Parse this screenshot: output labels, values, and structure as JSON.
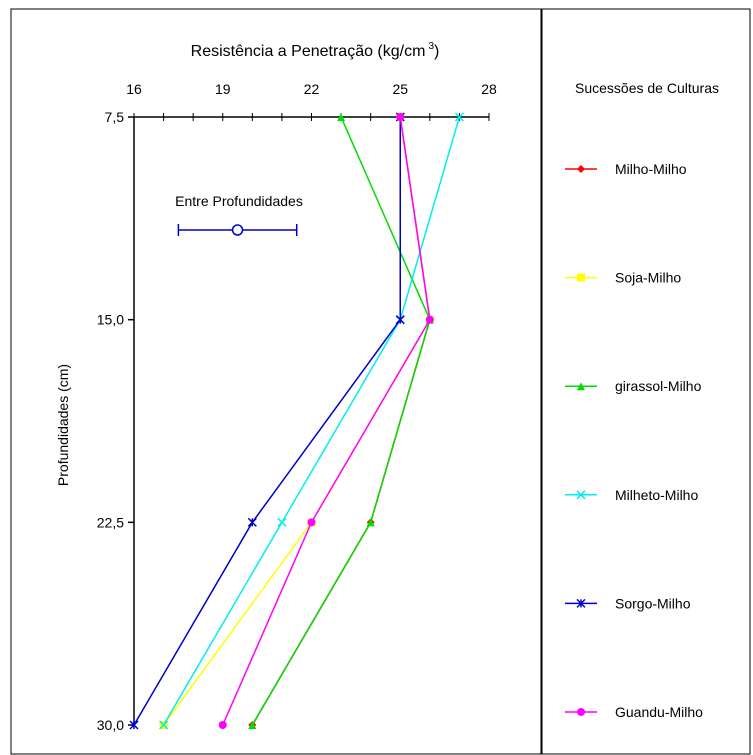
{
  "chart_data": {
    "type": "line",
    "title": "Resistência a Penetração (kg/cm",
    "title_superscript": "3",
    "title_close": ")",
    "ylabel": "Profundidades (cm)",
    "x_ticks": [
      "16",
      "19",
      "22",
      "25",
      "28"
    ],
    "x_range": [
      16,
      28
    ],
    "y_ticks": [
      "7,5",
      "15,0",
      "22,5",
      "30,0"
    ],
    "y_values": [
      7.5,
      15.0,
      22.5,
      30.0
    ],
    "y_range": [
      7.5,
      30.0
    ],
    "y_inverted": true,
    "x_axis_position": "top",
    "legend_title": "Sucessões de Culturas",
    "legend_position": "right panel",
    "error_bar": {
      "label": "Entre Profundidades",
      "center": 19.5,
      "low": 17.5,
      "high": 21.5,
      "color": "#0000cc"
    },
    "series": [
      {
        "name": "Milho-Milho",
        "color": "#ff0000",
        "marker": "diamond",
        "x": [
          25.0,
          26.0,
          24.0,
          20.0
        ]
      },
      {
        "name": "Soja-Milho",
        "color": "#ffff00",
        "marker": "square",
        "x": [
          25.0,
          26.0,
          22.0,
          17.0
        ]
      },
      {
        "name": "girassol-Milho",
        "color": "#00dd00",
        "marker": "triangle",
        "x": [
          23.0,
          26.0,
          24.0,
          20.0
        ]
      },
      {
        "name": "Milheto-Milho",
        "color": "#00eeee",
        "marker": "x",
        "x": [
          27.0,
          25.0,
          21.0,
          17.0
        ]
      },
      {
        "name": "Sorgo-Milho",
        "color": "#0000cc",
        "marker": "star",
        "x": [
          25.0,
          25.0,
          20.0,
          16.0
        ]
      },
      {
        "name": "Guandu-Milho",
        "color": "#ff00ff",
        "marker": "circle",
        "x": [
          25.0,
          26.0,
          22.0,
          19.0
        ]
      }
    ]
  }
}
